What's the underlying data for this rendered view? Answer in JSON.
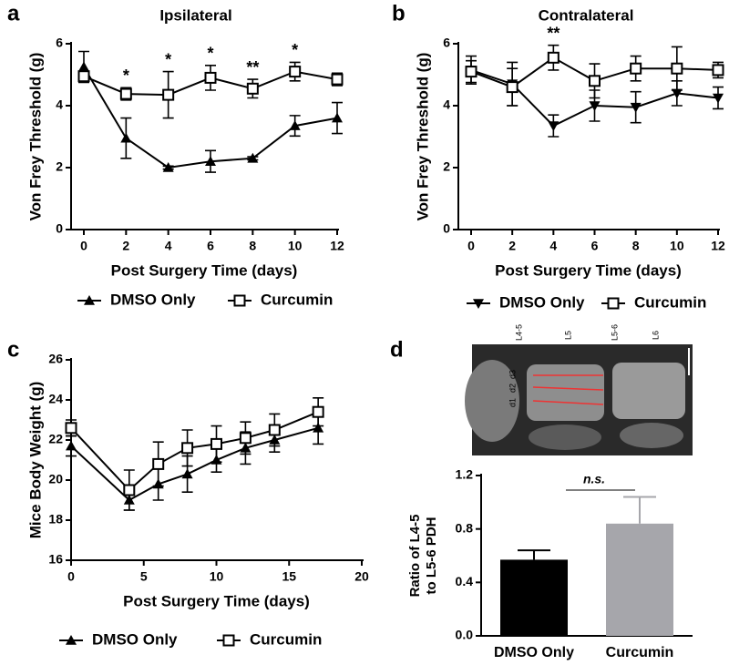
{
  "chart_data": [
    {
      "type": "line",
      "panel_label": "a",
      "title": "Ipsilateral",
      "x_label": "Post Surgery Time (days)",
      "y_label": "Von Frey Threshold (g)",
      "x": [
        0,
        2,
        4,
        6,
        8,
        10,
        12
      ],
      "series": [
        {
          "name": "DMSO Only",
          "color": "#000000",
          "marker": "triangle",
          "values": [
            5.25,
            2.95,
            2.0,
            2.2,
            2.3,
            3.35,
            3.6
          ],
          "errors": [
            0.5,
            0.65,
            0.05,
            0.35,
            0.05,
            0.33,
            0.5
          ]
        },
        {
          "name": "Curcumin",
          "color": "#000000",
          "marker": "square-open",
          "values": [
            4.95,
            4.38,
            4.35,
            4.9,
            4.55,
            5.1,
            4.85
          ],
          "errors": [
            0.15,
            0.2,
            0.75,
            0.4,
            0.3,
            0.3,
            0.2
          ]
        }
      ],
      "xlim": [
        0,
        12
      ],
      "xticks": [
        0,
        2,
        4,
        6,
        8,
        10,
        12
      ],
      "ylim": [
        0,
        6
      ],
      "yticks": [
        0,
        2,
        4,
        6
      ],
      "annotations": [
        {
          "x": 2,
          "text": "*"
        },
        {
          "x": 4,
          "text": "*"
        },
        {
          "x": 6,
          "text": "*"
        },
        {
          "x": 8,
          "text": "**"
        },
        {
          "x": 10,
          "text": "*"
        }
      ],
      "legend": "bottom"
    },
    {
      "type": "line",
      "panel_label": "b",
      "title": "Contralateral",
      "x_label": "Post Surgery Time (days)",
      "y_label": "Von Frey Threshold (g)",
      "x": [
        0,
        2,
        4,
        6,
        8,
        10,
        12
      ],
      "series": [
        {
          "name": "DMSO Only",
          "color": "#000000",
          "marker": "triangle-down",
          "values": [
            5.15,
            4.7,
            3.35,
            4.0,
            3.95,
            4.4,
            4.25
          ],
          "errors": [
            0.45,
            0.7,
            0.35,
            0.5,
            0.5,
            0.4,
            0.35
          ]
        },
        {
          "name": "Curcumin",
          "color": "#000000",
          "marker": "square-open",
          "values": [
            5.1,
            4.6,
            5.55,
            4.8,
            5.2,
            5.2,
            5.15
          ],
          "errors": [
            0.35,
            0.6,
            0.4,
            0.55,
            0.4,
            0.7,
            0.25
          ]
        }
      ],
      "xlim": [
        0,
        12
      ],
      "xticks": [
        0,
        2,
        4,
        6,
        8,
        10,
        12
      ],
      "ylim": [
        0,
        6
      ],
      "yticks": [
        0,
        2,
        4,
        6
      ],
      "annotations": [
        {
          "x": 4,
          "text": "**"
        }
      ],
      "legend": "bottom"
    },
    {
      "type": "line",
      "panel_label": "c",
      "x_label": "Post Surgery Time (days)",
      "y_label": "Mice Body Weight (g)",
      "x": [
        0,
        4,
        6,
        8,
        10,
        12,
        14,
        17
      ],
      "series": [
        {
          "name": "DMSO Only",
          "color": "#000000",
          "marker": "triangle",
          "values": [
            21.7,
            19.0,
            19.8,
            20.3,
            21.0,
            21.6,
            22.0,
            22.6
          ],
          "errors": [
            0.5,
            0.5,
            0.8,
            0.9,
            0.6,
            0.8,
            0.6,
            0.8
          ]
        },
        {
          "name": "Curcumin",
          "color": "#000000",
          "marker": "square-open",
          "values": [
            22.6,
            19.5,
            20.8,
            21.6,
            21.8,
            22.1,
            22.5,
            23.4
          ],
          "errors": [
            0.4,
            1.0,
            1.1,
            0.9,
            0.9,
            0.8,
            0.8,
            0.7
          ]
        }
      ],
      "xlim": [
        0,
        20
      ],
      "xticks": [
        0,
        5,
        10,
        15,
        20
      ],
      "ylim": [
        16,
        26
      ],
      "yticks": [
        16,
        18,
        20,
        22,
        24,
        26
      ],
      "legend": "bottom"
    },
    {
      "type": "bar",
      "panel_label": "d",
      "y_label": [
        "Ratio of L4-5",
        "to L5-6 PDH"
      ],
      "categories": [
        "DMSO Only",
        "Curcumin"
      ],
      "values": [
        0.57,
        0.84
      ],
      "errors": [
        0.07,
        0.2
      ],
      "colors": [
        "#000000",
        "#a6a6ab"
      ],
      "ylim": [
        0,
        1.2
      ],
      "yticks": [
        {
          "value": 0,
          "label": "0.0"
        },
        0.4,
        0.8,
        1.2
      ],
      "significance": "n.s.",
      "image_labels": [
        "L4-5",
        "L5",
        "L5-6",
        "L6",
        "d3",
        "d2",
        "d1"
      ]
    }
  ]
}
